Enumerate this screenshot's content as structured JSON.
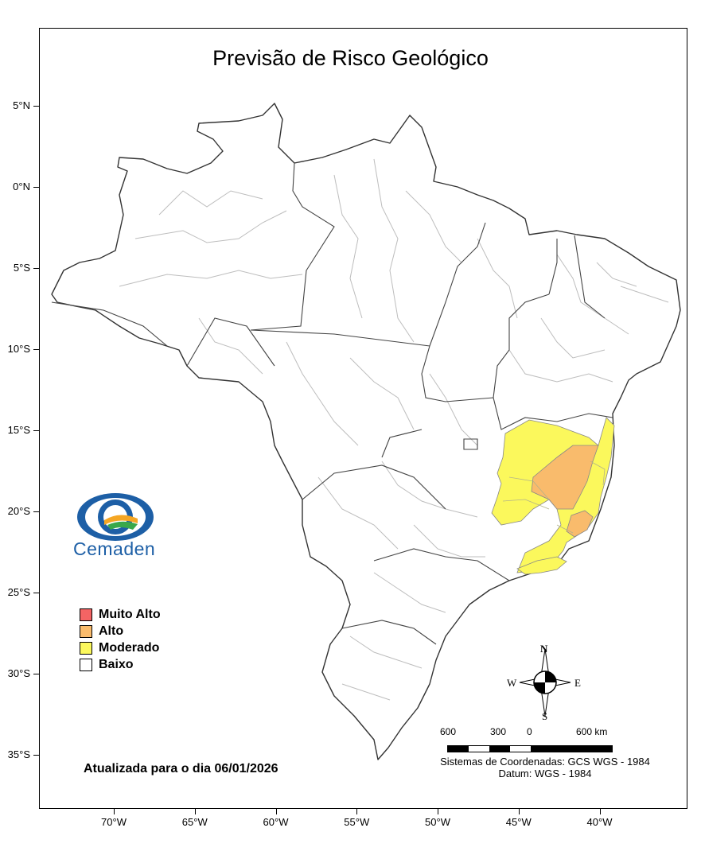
{
  "title": "Previsão de Risco Geológico",
  "latitude_labels": [
    {
      "label": "5°N",
      "lat": 5
    },
    {
      "label": "0°N",
      "lat": 0
    },
    {
      "label": "5°S",
      "lat": -5
    },
    {
      "label": "10°S",
      "lat": -10
    },
    {
      "label": "15°S",
      "lat": -15
    },
    {
      "label": "20°S",
      "lat": -20
    },
    {
      "label": "25°S",
      "lat": -25
    },
    {
      "label": "30°S",
      "lat": -30
    },
    {
      "label": "35°S",
      "lat": -35
    }
  ],
  "longitude_labels": [
    {
      "label": "70°W",
      "lon": -70
    },
    {
      "label": "65°W",
      "lon": -65
    },
    {
      "label": "60°W",
      "lon": -60
    },
    {
      "label": "55°W",
      "lon": -55
    },
    {
      "label": "50°W",
      "lon": -50
    },
    {
      "label": "45°W",
      "lon": -45
    },
    {
      "label": "40°W",
      "lon": -40
    }
  ],
  "legend": [
    {
      "label": "Muito Alto",
      "color": "#f46464"
    },
    {
      "label": "Alto",
      "color": "#f9bb6c"
    },
    {
      "label": "Moderado",
      "color": "#fbf85c"
    },
    {
      "label": "Baixo",
      "color": "#ffffff"
    }
  ],
  "logo_text": "Cemaden",
  "updated_text": "Atualizada para o dia 06/01/2026",
  "compass": {
    "n": "N",
    "s": "S",
    "e": "E",
    "w": "W"
  },
  "scale": {
    "labels": [
      "600",
      "300",
      "0",
      "600 km"
    ]
  },
  "coordinate_system": "Sistemas de Coordenadas: GCS WGS - 1984",
  "datum": "Datum: WGS - 1984",
  "colors": {
    "border": "#333333",
    "internal": "#bdbdbd",
    "alto": "#f9bb6c",
    "moderado": "#fbf85c"
  }
}
